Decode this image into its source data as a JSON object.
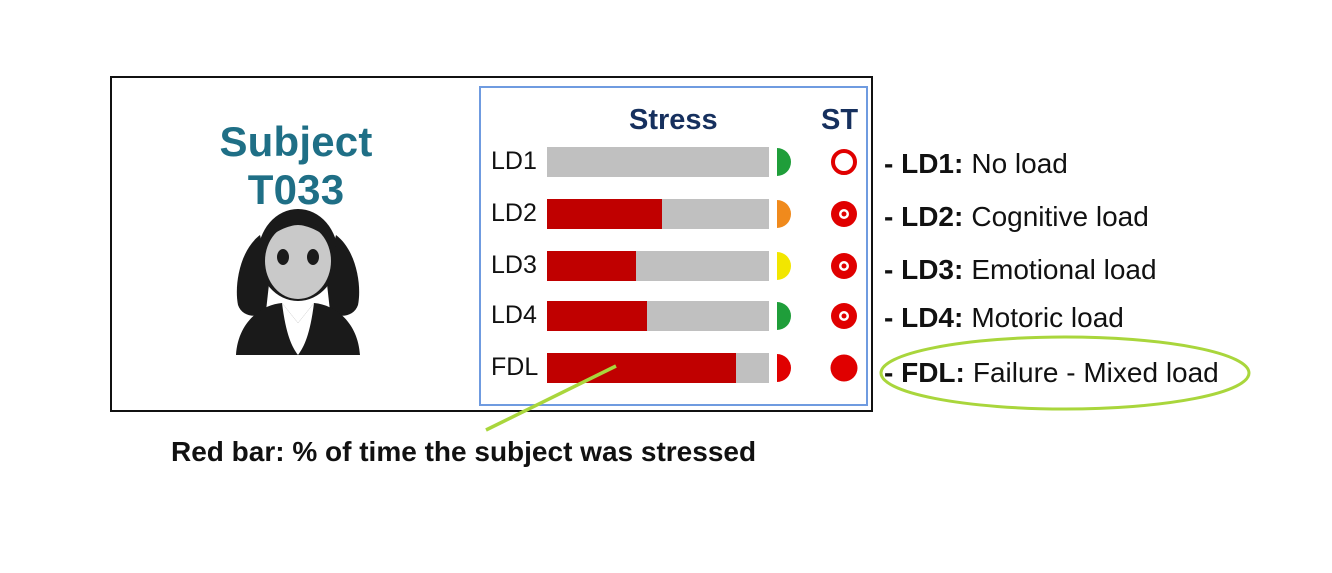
{
  "subject": {
    "title": "Subject T033"
  },
  "panel": {
    "stress_header": "Stress",
    "st_header": "ST",
    "rows": [
      {
        "label": "LD1",
        "stressed_fraction": 0.0,
        "half_dot_color": "#1f9e3a",
        "st_marker": "ring"
      },
      {
        "label": "LD2",
        "stressed_fraction": 0.52,
        "half_dot_color": "#f08a1c",
        "st_marker": "dot-ring"
      },
      {
        "label": "LD3",
        "stressed_fraction": 0.4,
        "half_dot_color": "#f2e600",
        "st_marker": "dot-ring"
      },
      {
        "label": "LD4",
        "stressed_fraction": 0.45,
        "half_dot_color": "#1f9e3a",
        "st_marker": "dot-ring"
      },
      {
        "label": "FDL",
        "stressed_fraction": 0.85,
        "half_dot_color": "#e00000",
        "st_marker": "filled"
      }
    ]
  },
  "legend": [
    {
      "prefix": "- ",
      "key": "LD1:",
      "desc": "No load"
    },
    {
      "prefix": "- ",
      "key": "LD2:",
      "desc": "Cognitive load"
    },
    {
      "prefix": "- ",
      "key": "LD3:",
      "desc": "Emotional load"
    },
    {
      "prefix": "- ",
      "key": "LD4:",
      "desc": "Motoric load"
    },
    {
      "prefix": "- ",
      "key": "FDL:",
      "desc": "Failure - Mixed load"
    }
  ],
  "caption": "Red bar: % of time the subject was stressed",
  "colors": {
    "title": "#1f6f86",
    "stress_bar": "#c00000",
    "track": "#c0c0c0",
    "panel_border": "#6f9be0",
    "highlight": "#a9d63c",
    "st_red": "#e00000"
  }
}
